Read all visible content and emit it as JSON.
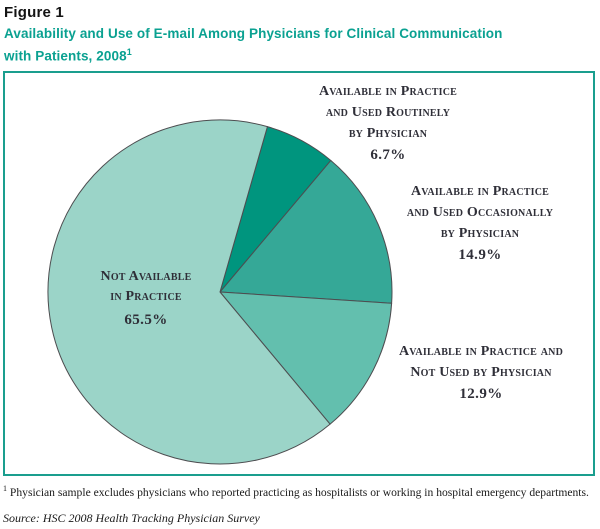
{
  "figure_label": "Figure 1",
  "title": {
    "text": "Availability and Use of E-mail Among Physicians for Clinical Communication with Patients, 2008",
    "superscript": "1"
  },
  "footnote": {
    "marker": "1",
    "text": " Physician sample excludes physicians who reported practicing as hospitalists or working in hospital emergency departments."
  },
  "source": "Source: HSC 2008 Health Tracking Physician Survey",
  "colors": {
    "title_teal": "#0aa191",
    "box_border": "#1a9e8e",
    "label_text": "#2f2f38",
    "slice_border": "#4d4d50"
  },
  "chart_data": {
    "type": "pie",
    "title": "Availability and Use of E-mail Among Physicians for Clinical Communication with Patients, 2008",
    "start_angle_clockwise_from_top_deg": 16,
    "legend_position": "labels-around-pie",
    "slice_border_color": "#4d4d50",
    "slices": [
      {
        "id": "routinely",
        "label": "Available in Practice and Used Routinely by Physician",
        "label_lines": [
          "Available in Practice",
          "and Used Routinely",
          "by Physician"
        ],
        "value": 6.7,
        "pct_label": "6.7%",
        "color": "#00957e"
      },
      {
        "id": "occasionally",
        "label": "Available in Practice and Used Occasionally by Physician",
        "label_lines": [
          "Available in Practice",
          "and Used Occasionally",
          "by Physician"
        ],
        "value": 14.9,
        "pct_label": "14.9%",
        "color": "#35a897"
      },
      {
        "id": "not-used",
        "label": "Available in Practice and Not Used by Physician",
        "label_lines": [
          "Available in Practice and",
          "Not Used by Physician"
        ],
        "value": 12.9,
        "pct_label": "12.9%",
        "color": "#63bfae"
      },
      {
        "id": "not-available",
        "label": "Not Available in Practice",
        "label_lines": [
          "Not Available",
          "in Practice"
        ],
        "value": 65.5,
        "pct_label": "65.5%",
        "color": "#9bd4c8"
      }
    ]
  }
}
